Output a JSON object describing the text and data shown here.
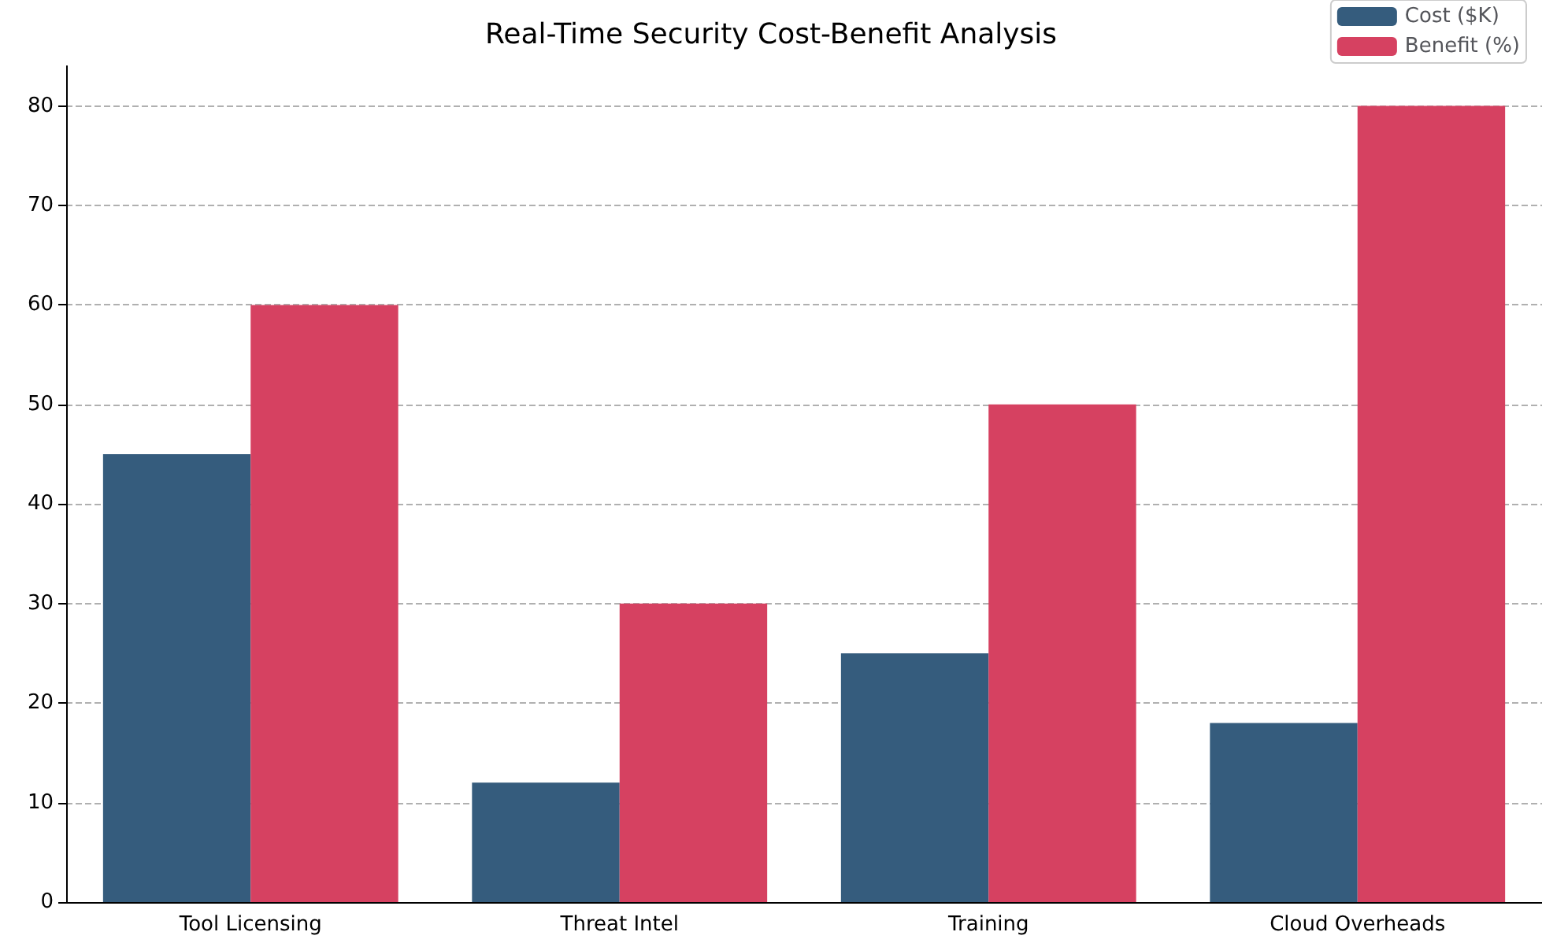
{
  "chart_data": {
    "type": "bar",
    "title": "Real-Time Security Cost-Benefit Analysis",
    "categories": [
      "Tool Licensing",
      "Threat Intel",
      "Training",
      "Cloud Overheads"
    ],
    "series": [
      {
        "name": "Cost ($K)",
        "color": "#355c7d",
        "values": [
          45,
          12,
          25,
          18
        ]
      },
      {
        "name": "Benefit (%)",
        "color": "#d64161",
        "values": [
          60,
          30,
          50,
          80
        ]
      }
    ],
    "ylim": [
      0,
      84
    ],
    "yticks": [
      0,
      10,
      20,
      30,
      40,
      50,
      60,
      70,
      80
    ],
    "grid": "y",
    "legend": "top right"
  }
}
